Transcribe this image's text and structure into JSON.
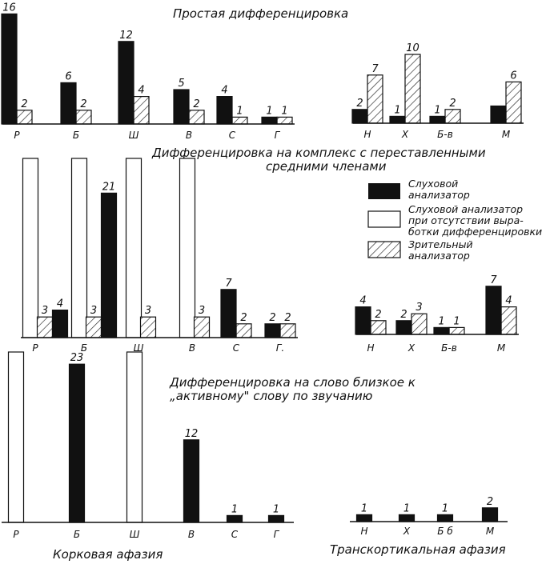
{
  "titles": {
    "panel1": "Простая дифференцировка",
    "panel2_line1": "Дифференцировка на комплекс с переставленными",
    "panel2_line2": "средними членами",
    "panel3_line1": "Дифференцировка на слово близкое к",
    "panel3_line2": "„активному\" слову по звучанию"
  },
  "captions": {
    "left": "Корковая афазия",
    "right": "Транскортикальная афазия"
  },
  "legend": {
    "auditory": [
      "Слуховой",
      "анализатор"
    ],
    "auditory_absent": [
      "Слуховой анализатор",
      "при отсутствии выра-",
      "ботки дифференцировки"
    ],
    "visual": [
      "Зрительный",
      "анализатор"
    ]
  },
  "colors": {
    "auditory": "#111111",
    "visual_hatch": "#222222",
    "outline": "#111111",
    "background": "#ffffff"
  },
  "chart_data": [
    {
      "type": "bar",
      "title": "Простая дифференцировка",
      "group": "Корковая афазия",
      "categories": [
        "Р",
        "Б",
        "Ш",
        "В",
        "С",
        "Г"
      ],
      "series": [
        {
          "name": "Слуховой анализатор",
          "values": [
            16,
            6,
            12,
            5,
            4,
            1
          ],
          "labels": [
            "16",
            "6",
            "12",
            "5",
            "4",
            "1"
          ]
        },
        {
          "name": "Зрительный анализатор",
          "values": [
            2,
            2,
            4,
            2,
            1,
            1
          ],
          "labels": [
            "2",
            "2",
            "4",
            "2",
            "1",
            "1"
          ]
        }
      ]
    },
    {
      "type": "bar",
      "title": "Простая дифференцировка",
      "group": "Транскортикальная афазия",
      "categories": [
        "Н",
        "Х",
        "Б-в",
        "М"
      ],
      "series": [
        {
          "name": "Слуховой анализатор",
          "values": [
            2,
            1,
            1,
            2.5
          ],
          "labels": [
            "2",
            "1",
            "1",
            ""
          ]
        },
        {
          "name": "Зрительный анализатор",
          "values": [
            7,
            10,
            2,
            6
          ],
          "labels": [
            "7",
            "10",
            "2",
            "6"
          ]
        }
      ]
    },
    {
      "type": "bar",
      "title": "Дифференцировка на комплекс с переставленными средними членами",
      "group": "Корковая афазия",
      "categories": [
        "Р",
        "Б",
        "Ш",
        "В",
        "С",
        "Г."
      ],
      "series": [
        {
          "name": "Слуховой анализатор при отсутствии выработки дифференцировки",
          "values": [
            1,
            1,
            1,
            1,
            0,
            0
          ]
        },
        {
          "name": "Слуховой анализатор",
          "values": [
            4,
            21,
            0,
            0,
            7,
            2
          ],
          "labels": [
            "4",
            "21",
            "",
            "",
            "7",
            "2"
          ]
        },
        {
          "name": "Зрительный анализатор",
          "values": [
            3,
            3,
            3,
            3,
            2,
            2
          ],
          "labels": [
            "3",
            "3",
            "3",
            "3",
            "2",
            "2"
          ]
        }
      ]
    },
    {
      "type": "bar",
      "title": "Дифференцировка на комплекс с переставленными средними членами",
      "group": "Транскортикальная афазия",
      "categories": [
        "Н",
        "Х",
        "Б-в",
        "М"
      ],
      "series": [
        {
          "name": "Слуховой анализатор",
          "values": [
            4,
            2,
            1,
            7
          ],
          "labels": [
            "4",
            "2",
            "1",
            "7"
          ]
        },
        {
          "name": "Зрительный анализатор",
          "values": [
            2,
            3,
            1,
            4
          ],
          "labels": [
            "2",
            "3",
            "1",
            "4"
          ]
        }
      ]
    },
    {
      "type": "bar",
      "title": "Дифференцировка на слово близкое к „активному\" слову по звучанию",
      "group": "Корковая афазия",
      "categories": [
        "Р",
        "Б",
        "Ш",
        "В",
        "С",
        "Г"
      ],
      "series": [
        {
          "name": "Слуховой анализатор при отсутствии выработки дифференцировки",
          "values": [
            1,
            0,
            1,
            0,
            0,
            0
          ]
        },
        {
          "name": "Слуховой анализатор",
          "values": [
            0,
            23,
            0,
            12,
            1,
            1
          ],
          "labels": [
            "",
            "23",
            "",
            "12",
            "1",
            "1"
          ]
        }
      ]
    },
    {
      "type": "bar",
      "title": "Дифференцировка на слово близкое к „активному\" слову по звучанию",
      "group": "Транскортикальная афазия",
      "categories": [
        "Н",
        "Х",
        "Б б",
        "М"
      ],
      "series": [
        {
          "name": "Слуховой анализатор",
          "values": [
            1,
            1,
            1,
            2
          ],
          "labels": [
            "1",
            "1",
            "1",
            "2"
          ]
        }
      ]
    }
  ]
}
